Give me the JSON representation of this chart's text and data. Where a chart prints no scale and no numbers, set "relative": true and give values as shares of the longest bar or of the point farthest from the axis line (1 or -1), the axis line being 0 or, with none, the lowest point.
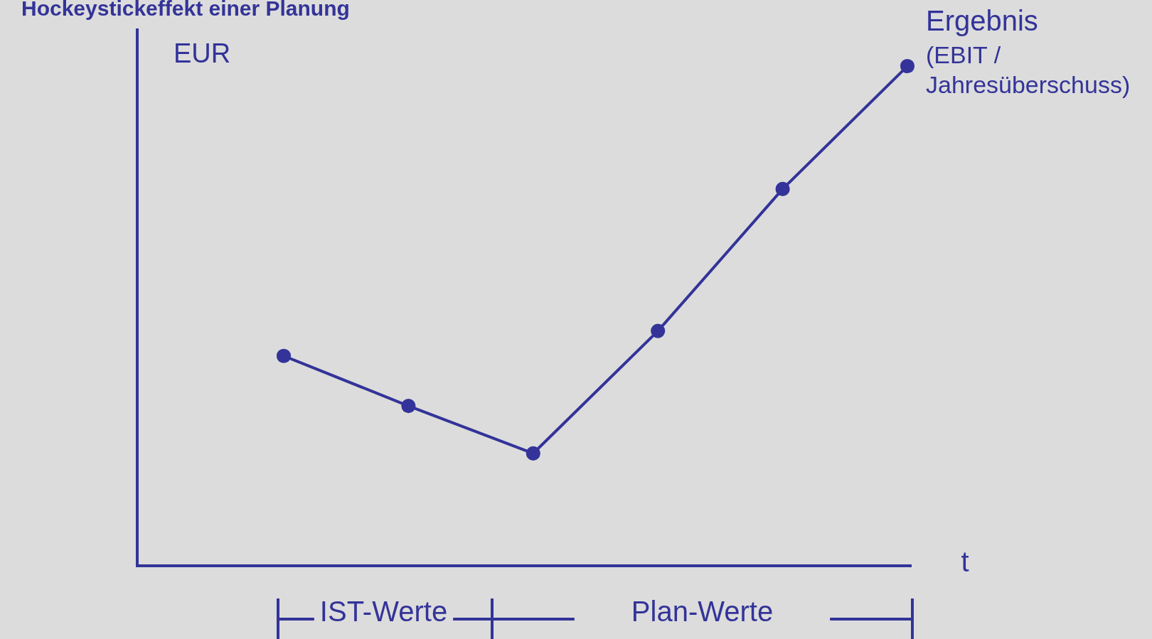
{
  "chart_data": {
    "type": "line",
    "title": "Hockeystickeffekt einer Planung",
    "ylabel": "EUR",
    "xlabel": "t",
    "relative": true,
    "categories": [
      null,
      null,
      null,
      null,
      null,
      null
    ],
    "series": [
      {
        "name": "Ergebnis\n(EBIT /\nJahresüberschuss)",
        "color": "#333399",
        "values": [
          0.42,
          0.32,
          0.225,
          0.47,
          0.754,
          1
        ]
      }
    ],
    "annotations": [
      "IST-Werte",
      "Plan-Werte"
    ],
    "marker": "circle",
    "line_style": "solid"
  }
}
